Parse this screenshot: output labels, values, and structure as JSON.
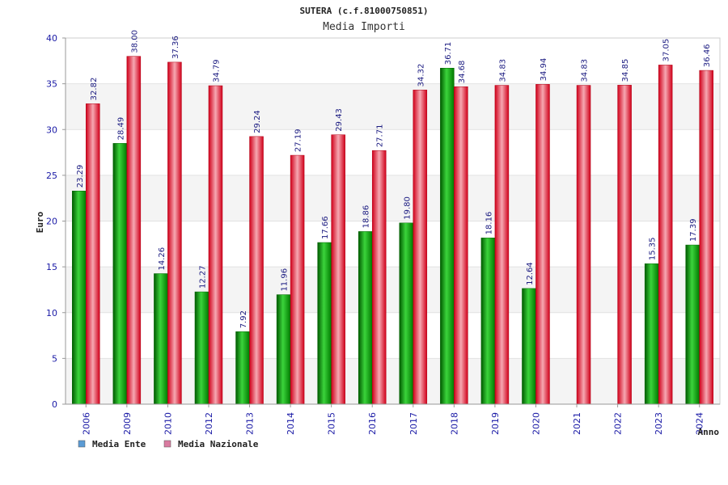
{
  "chart_data": {
    "type": "bar",
    "title": "SUTERA (c.f.81000750851)",
    "subtitle": "Media Importi",
    "xlabel": "Anno",
    "ylabel": "Euro",
    "ylim": [
      0,
      40
    ],
    "yticks": [
      0,
      5,
      10,
      15,
      20,
      25,
      30,
      35,
      40
    ],
    "grid": true,
    "legend_position": "bottom-left",
    "categories": [
      "2006",
      "2009",
      "2010",
      "2012",
      "2013",
      "2014",
      "2015",
      "2016",
      "2017",
      "2018",
      "2019",
      "2020",
      "2021",
      "2022",
      "2023",
      "2024"
    ],
    "series": [
      {
        "name": "Media Ente",
        "color": "#00a000",
        "legend_color": "#5b9bd5",
        "values": [
          23.29,
          28.49,
          14.26,
          12.27,
          7.92,
          11.96,
          17.66,
          18.86,
          19.8,
          36.71,
          18.16,
          12.64,
          null,
          null,
          15.35,
          17.39
        ],
        "labels": [
          "23.29",
          "28.49",
          "14.26",
          "12.27",
          "7.92",
          "11.96",
          "17.66",
          "18.86",
          "19.80",
          "36.71",
          "18.16",
          "12.64",
          null,
          null,
          "15.35",
          "17.39"
        ]
      },
      {
        "name": "Media Nazionale",
        "color": "#e8001a",
        "legend_color": "#d97ba0",
        "values": [
          32.82,
          38.0,
          37.36,
          34.79,
          29.24,
          27.19,
          29.43,
          27.71,
          34.32,
          34.68,
          34.83,
          34.94,
          34.83,
          34.85,
          37.05,
          36.46
        ],
        "labels": [
          "32.82",
          "38.00",
          "37.36",
          "34.79",
          "29.24",
          "27.19",
          "29.43",
          "27.71",
          "34.32",
          "34.68",
          "34.83",
          "34.94",
          "34.83",
          "34.85",
          "37.05",
          "36.46"
        ]
      }
    ]
  }
}
